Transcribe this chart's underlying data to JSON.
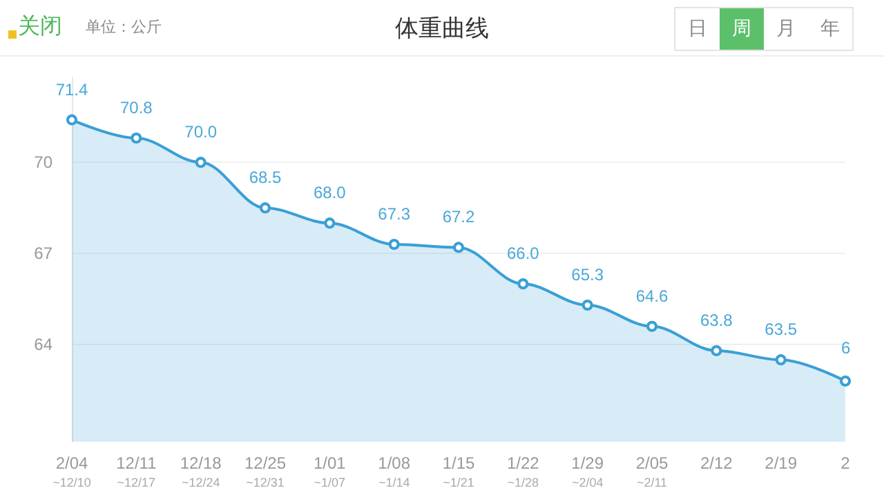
{
  "chart_data": {
    "type": "area",
    "title": "体重曲线",
    "annotations": [
      "关闭",
      "单位：公斤",
      "日",
      "周",
      "月",
      "年",
      "6"
    ],
    "categories": [
      "2/04\n~12/10",
      "12/11\n~12/17",
      "12/18\n~12/24",
      "12/25\n~12/31",
      "1/01\n~1/07",
      "1/08\n~1/14",
      "1/15\n~1/21",
      "1/22\n~1/28",
      "1/29\n~2/04",
      "2/05\n~2/11",
      "2/12",
      "2/19",
      "2"
    ],
    "values": [
      71.4,
      70.8,
      70.0,
      68.5,
      68.0,
      67.3,
      67.2,
      66.0,
      65.3,
      64.6,
      63.8,
      63.5,
      62.8
    ],
    "value_labels": [
      "71.4",
      "70.8",
      "70.0",
      "68.5",
      "68.0",
      "67.3",
      "67.2",
      "66.0",
      "65.3",
      "64.6",
      "63.8",
      "63.5",
      null
    ],
    "color": "#3a9fd6",
    "ylim": [
      60.8,
      72.8
    ],
    "yticks": [
      70,
      67,
      64
    ],
    "grid": "y",
    "marker": "circle"
  }
}
